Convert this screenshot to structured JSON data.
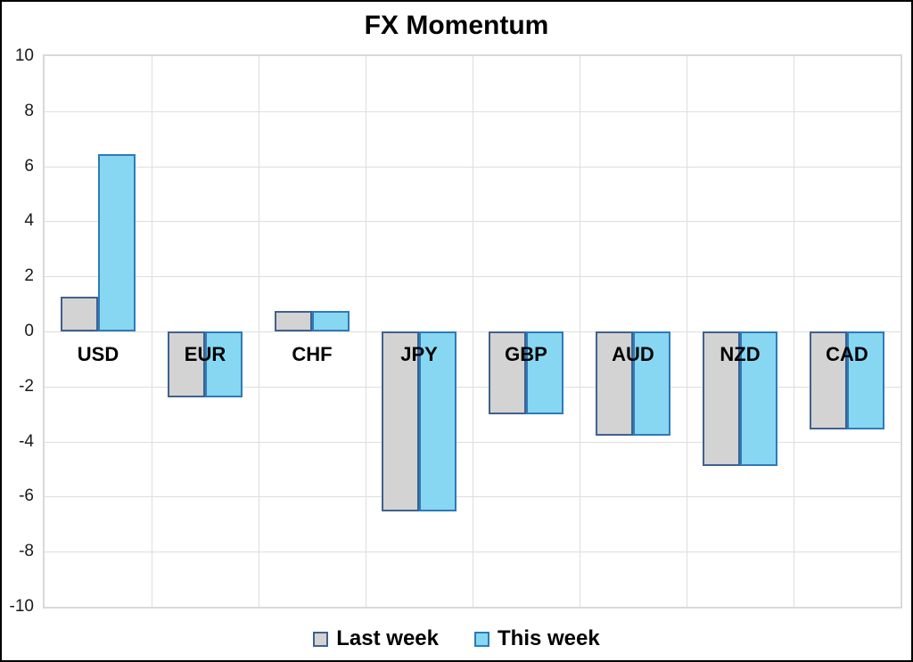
{
  "chart_data": {
    "type": "bar",
    "title": "FX Momentum",
    "categories": [
      "USD",
      "EUR",
      "CHF",
      "JPY",
      "GBP",
      "AUD",
      "NZD",
      "CAD"
    ],
    "series": [
      {
        "name": "Last week",
        "fill": "#d3d3d3",
        "border": "#40618e",
        "values": [
          1.25,
          -2.4,
          0.75,
          -6.55,
          -3.0,
          -3.8,
          -4.9,
          -3.55
        ]
      },
      {
        "name": "This week",
        "fill": "#87d7f3",
        "border": "#2d7bb9",
        "values": [
          6.45,
          -2.4,
          0.75,
          -6.55,
          -3.0,
          -3.8,
          -4.9,
          -3.55
        ]
      }
    ],
    "xlabel": "",
    "ylabel": "",
    "ylim": [
      -10,
      10
    ],
    "ytick_step": 2,
    "grid": true,
    "legend_position": "bottom",
    "colors": {
      "gridline": "#dedede",
      "plot_border": "#d9d9d9",
      "frame_border": "#000000",
      "text": "#000000"
    }
  }
}
